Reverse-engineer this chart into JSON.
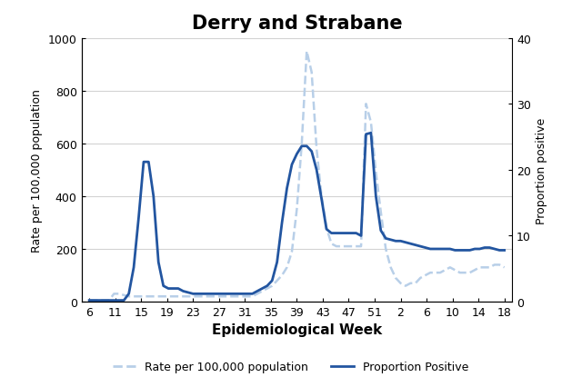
{
  "title": "Derry and Strabane",
  "xlabel": "Epidemiological Week",
  "ylabel_left": "Rate per 100,000 population",
  "ylabel_right": "Proportion positive",
  "x_tick_labels": [
    "6",
    "11",
    "15",
    "19",
    "23",
    "27",
    "31",
    "35",
    "39",
    "43",
    "47",
    "51",
    "2",
    "6",
    "10",
    "14",
    "18"
  ],
  "ylim_left": [
    0,
    1000
  ],
  "ylim_right": [
    0,
    40
  ],
  "yticks_left": [
    0,
    200,
    400,
    600,
    800,
    1000
  ],
  "yticks_right": [
    0,
    10,
    20,
    30,
    40
  ],
  "color_rate": "#b8cfe8",
  "color_proportion": "#2255a0",
  "background_color": "#ffffff",
  "title_fontsize": 15,
  "axis_fontsize": 9,
  "xlabel_fontsize": 11,
  "legend_fontsize": 9,
  "rate_y": [
    5,
    5,
    5,
    5,
    5,
    30,
    30,
    25,
    20,
    20,
    20,
    20,
    20,
    20,
    20,
    20,
    20,
    20,
    20,
    20,
    20,
    20,
    20,
    20,
    20,
    20,
    20,
    20,
    20,
    20,
    20,
    20,
    20,
    20,
    30,
    40,
    50,
    60,
    80,
    100,
    130,
    190,
    350,
    600,
    950,
    870,
    580,
    400,
    280,
    220,
    210,
    210,
    210,
    210,
    210,
    210,
    750,
    680,
    490,
    340,
    200,
    130,
    90,
    70,
    60,
    70,
    70,
    90,
    100,
    110,
    110,
    110,
    120,
    130,
    120,
    110,
    110,
    110,
    120,
    130,
    130,
    130,
    140,
    140,
    130
  ],
  "prop_y": [
    5,
    5,
    5,
    5,
    5,
    5,
    5,
    5,
    30,
    130,
    320,
    530,
    530,
    400,
    150,
    60,
    50,
    50,
    50,
    40,
    35,
    30,
    30,
    30,
    30,
    30,
    30,
    30,
    30,
    30,
    30,
    30,
    30,
    30,
    40,
    50,
    60,
    80,
    150,
    300,
    430,
    520,
    560,
    590,
    590,
    570,
    500,
    390,
    275,
    260,
    260,
    260,
    260,
    260,
    260,
    250,
    635,
    640,
    400,
    270,
    240,
    235,
    230,
    230,
    225,
    220,
    215,
    210,
    205,
    200,
    200,
    200,
    200,
    200,
    195,
    195,
    195,
    195,
    200,
    200,
    205,
    205,
    200,
    195,
    195
  ]
}
